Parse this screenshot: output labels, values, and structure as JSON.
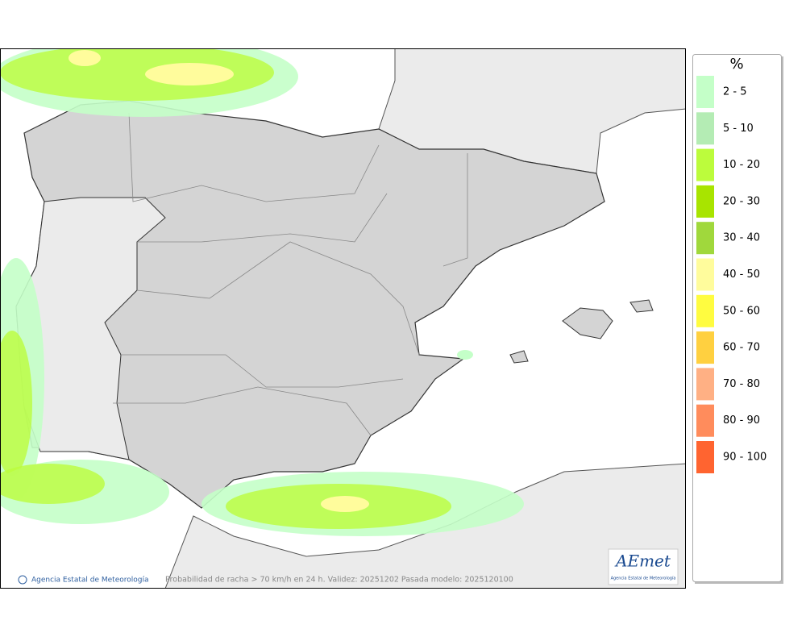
{
  "legend": {
    "title": "%",
    "items": [
      {
        "label": "2 - 5",
        "color": "#c4ffc8"
      },
      {
        "label": "5 - 10",
        "color": "#b4ecb4"
      },
      {
        "label": "10 - 20",
        "color": "#bcfc3c"
      },
      {
        "label": "20 - 30",
        "color": "#a8e400"
      },
      {
        "label": "30 - 40",
        "color": "#a0d83c"
      },
      {
        "label": "40 - 50",
        "color": "#fffc9c"
      },
      {
        "label": "50 - 60",
        "color": "#fffc40"
      },
      {
        "label": "60 - 70",
        "color": "#ffd040"
      },
      {
        "label": "70 - 80",
        "color": "#ffb084"
      },
      {
        "label": "80 - 90",
        "color": "#ff8c5c"
      },
      {
        "label": "90 - 100",
        "color": "#ff6430"
      }
    ]
  },
  "map": {
    "credit": "Agencia Estatal de Meteorología",
    "caption": "Probabilidad de racha > 70 km/h en 24 h. Validez: 20251202 Pasada modelo: 2025120100"
  },
  "logo": {
    "text": "AEmet",
    "subtitle": "Agencia Estatal de Meteorología"
  }
}
